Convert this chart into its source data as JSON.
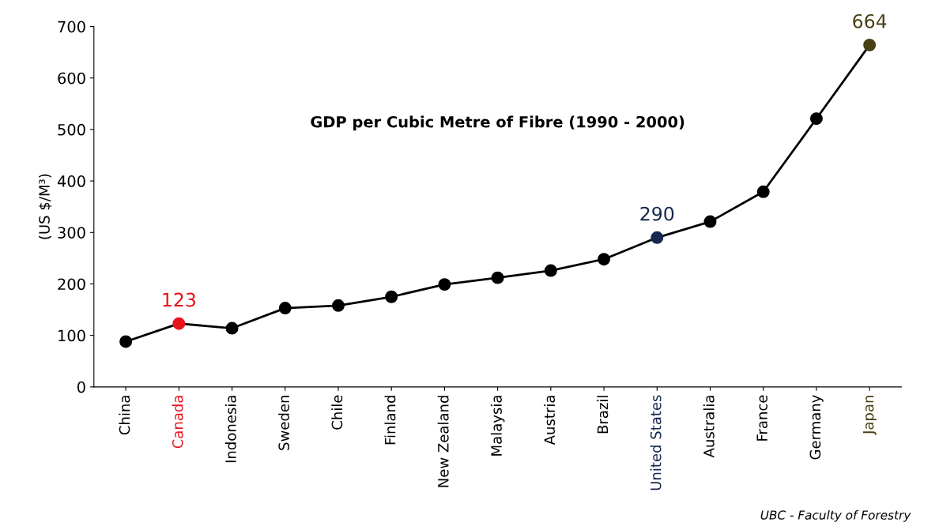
{
  "chart_data": {
    "type": "line",
    "title": "GDP per Cubic Metre of Fibre (1990 - 2000)",
    "ylabel": "(US $/M³)",
    "categories": [
      "China",
      "Canada",
      "Indonesia",
      "Sweden",
      "Chile",
      "Finland",
      "New Zealand",
      "Malaysia",
      "Austria",
      "Brazil",
      "United States",
      "Australia",
      "France",
      "Germany",
      "Japan"
    ],
    "series": [
      {
        "color": "#000000",
        "values": [
          88,
          123,
          114,
          153,
          158,
          175,
          199,
          212,
          226,
          248,
          290,
          321,
          379,
          521,
          664
        ],
        "colors": [
          "#000000",
          "#e8141b",
          "#000000",
          "#000000",
          "#000000",
          "#000000",
          "#000000",
          "#000000",
          "#000000",
          "#000000",
          "#15284f",
          "#000000",
          "#000000",
          "#000000",
          "#4a3f14"
        ],
        "value_labels": [
          null,
          "123",
          null,
          null,
          null,
          null,
          null,
          null,
          null,
          null,
          "290",
          null,
          null,
          null,
          "664"
        ]
      }
    ],
    "ylim": [
      0,
      700
    ],
    "yticks": [
      0,
      100,
      200,
      300,
      400,
      500,
      600,
      700
    ],
    "marker": "circle",
    "line_style": "solid",
    "grid": false,
    "annotations": [
      "UBC - Faculty of Forestry"
    ]
  }
}
